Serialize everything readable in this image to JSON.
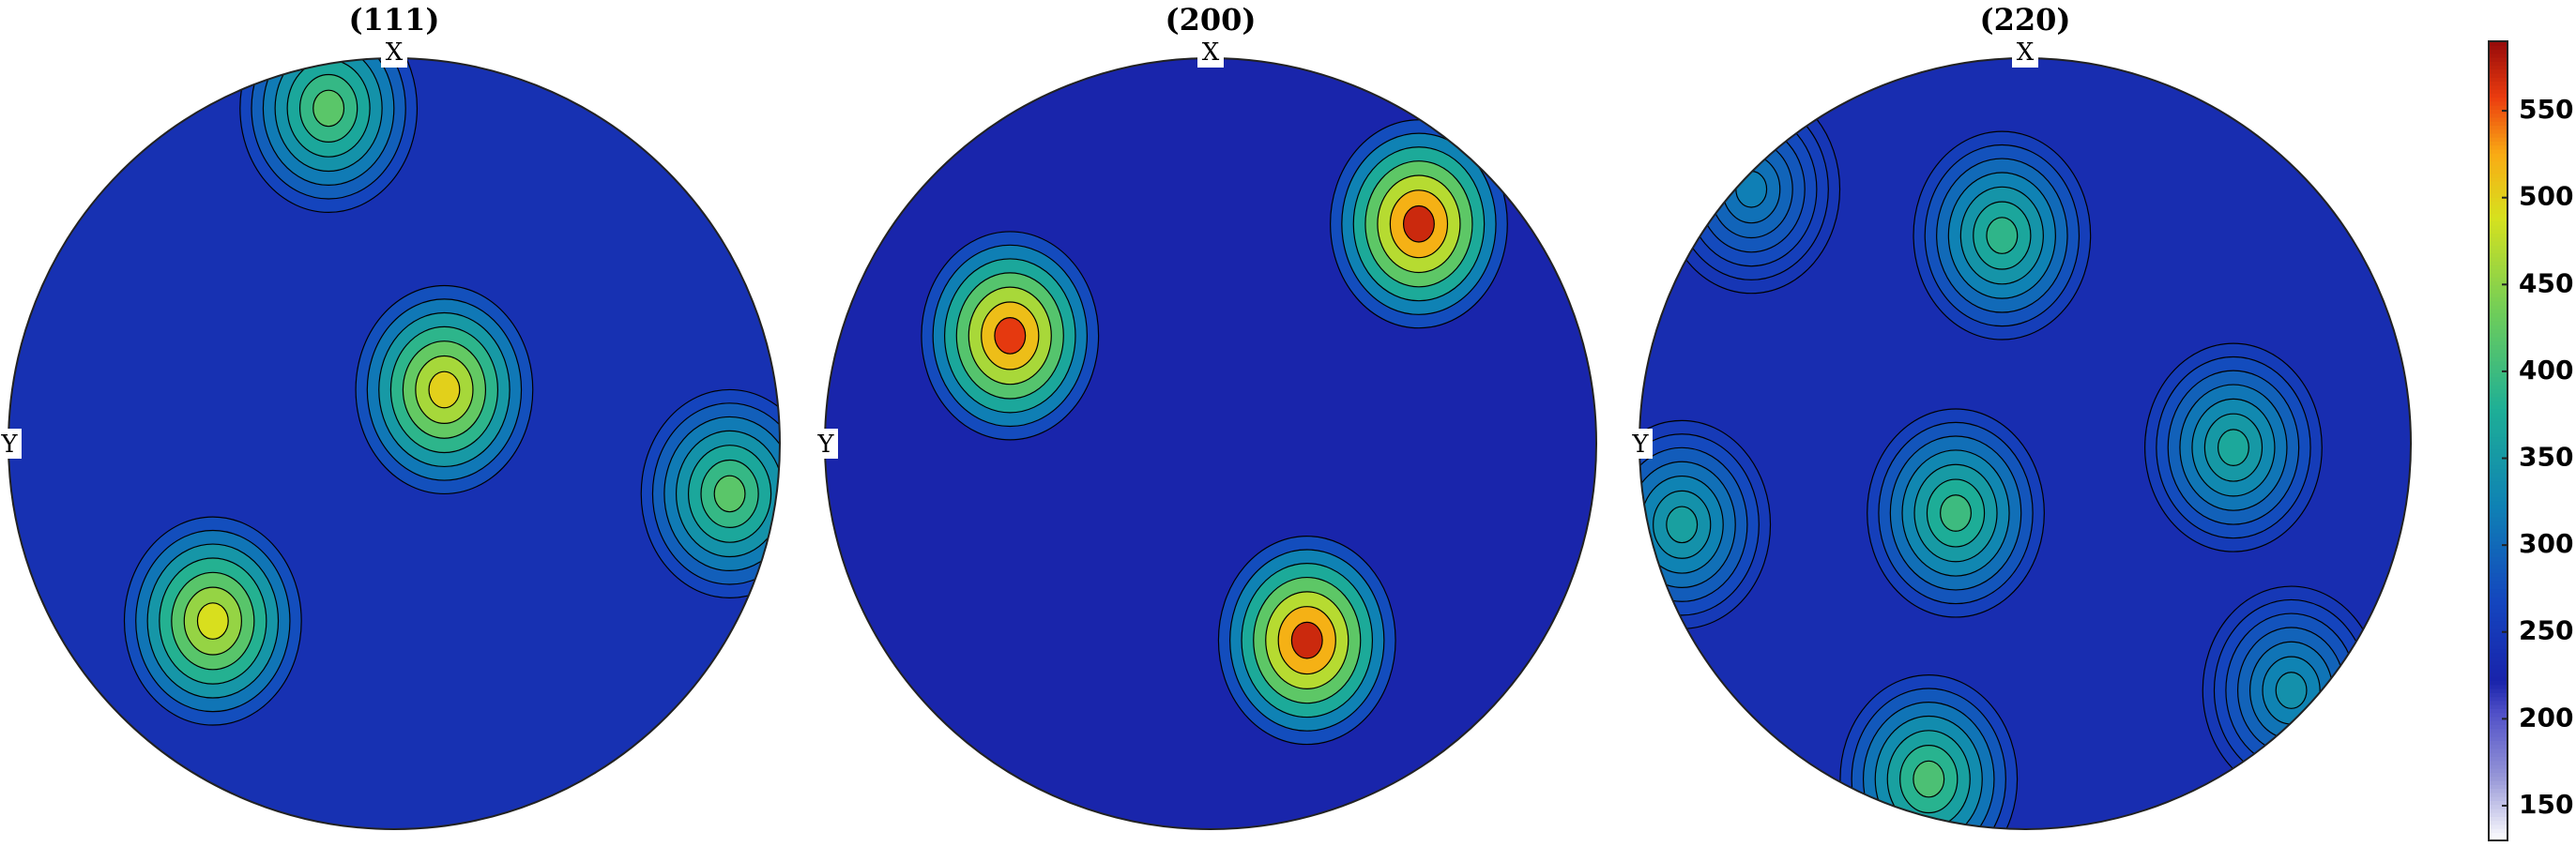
{
  "chart_data": [
    {
      "type": "pole-figure",
      "title": "(111)",
      "x_label": "X",
      "y_label": "Y",
      "background": 240,
      "peaks": [
        {
          "x": -0.17,
          "y": -0.87,
          "value": 420
        },
        {
          "x": 0.13,
          "y": -0.14,
          "value": 500
        },
        {
          "x": 0.87,
          "y": 0.13,
          "value": 420
        },
        {
          "x": -0.47,
          "y": 0.46,
          "value": 490
        }
      ]
    },
    {
      "type": "pole-figure",
      "title": "(200)",
      "x_label": "X",
      "y_label": "Y",
      "background": 225,
      "peaks": [
        {
          "x": -0.52,
          "y": -0.28,
          "value": 560
        },
        {
          "x": 0.54,
          "y": -0.57,
          "value": 570
        },
        {
          "x": 0.25,
          "y": 0.51,
          "value": 570
        }
      ]
    },
    {
      "type": "pole-figure",
      "title": "(220)",
      "x_label": "X",
      "y_label": "Y",
      "background": 235,
      "peaks": [
        {
          "x": -0.06,
          "y": -0.54,
          "value": 390
        },
        {
          "x": -0.18,
          "y": 0.18,
          "value": 400
        },
        {
          "x": 0.54,
          "y": 0.01,
          "value": 370
        },
        {
          "x": -0.89,
          "y": 0.21,
          "value": 360
        },
        {
          "x": -0.25,
          "y": 0.87,
          "value": 410
        },
        {
          "x": 0.69,
          "y": 0.64,
          "value": 340
        },
        {
          "x": -0.71,
          "y": -0.66,
          "value": 320
        }
      ]
    },
    {
      "type": "colorbar",
      "lim": [
        130,
        590
      ],
      "ticks": [
        150,
        200,
        250,
        300,
        350,
        400,
        450,
        500,
        550
      ]
    }
  ]
}
